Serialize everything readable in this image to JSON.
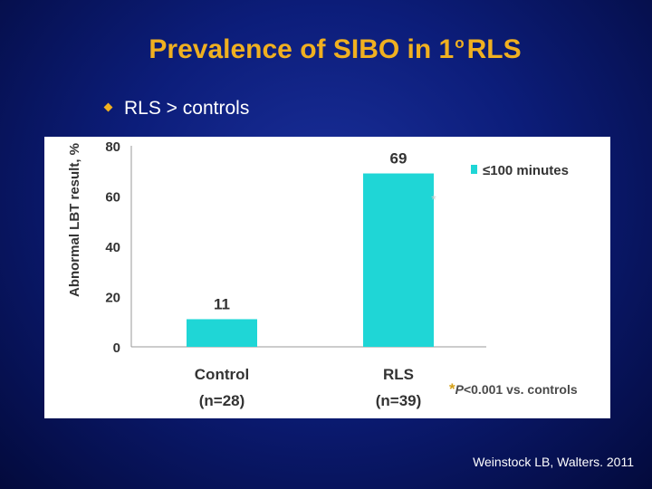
{
  "title_main": "Prevalence of SIBO in 1",
  "title_sup": "o",
  "title_end": "RLS",
  "bullet": "RLS > controls",
  "footnote_mark": "*",
  "footnote_p": "P",
  "footnote_text": "<0.001 vs. controls",
  "citation": "Weinstock LB, Walters. 2011",
  "colors": {
    "bar": "#1fd6d6",
    "title": "#f0b020",
    "background": "#0c1d7a"
  },
  "chart_data": {
    "type": "bar",
    "categories": [
      {
        "line1": "Control",
        "line2": "(n=28)"
      },
      {
        "line1": "RLS",
        "line2": "(n=39)"
      }
    ],
    "series": [
      {
        "name": "≤100 minutes",
        "values": [
          11,
          69
        ],
        "labels": [
          "11",
          "69"
        ]
      }
    ],
    "ylabel": "Abnormal LBT result, %",
    "ylim": [
      0,
      80
    ],
    "yticks": [
      "0",
      "20",
      "40",
      "60",
      "80"
    ],
    "annotation": "*",
    "legend_position": "top-right",
    "grid": false
  }
}
